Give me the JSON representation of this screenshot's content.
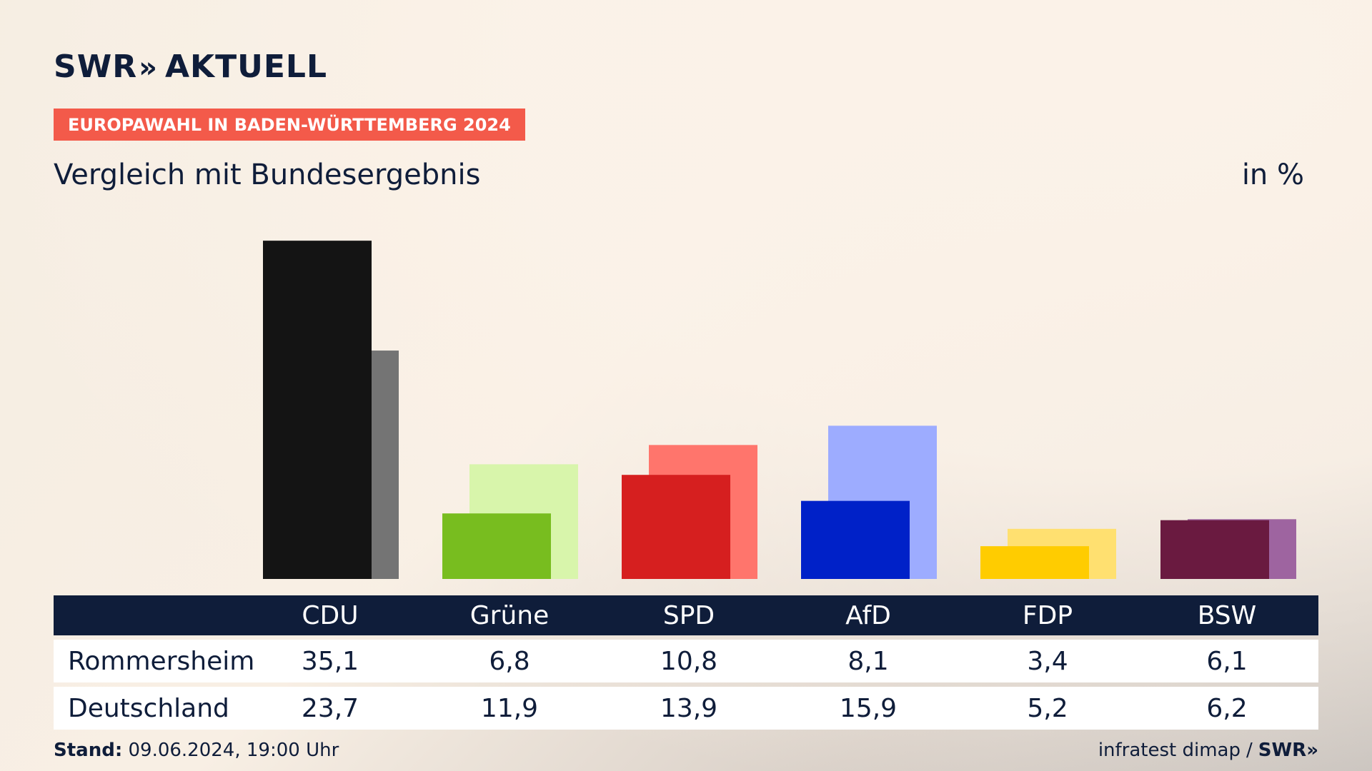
{
  "brand": {
    "logo_left": "SWR",
    "logo_chevron": "»",
    "logo_right": "AKTUELL"
  },
  "header": {
    "tag": "EUROPAWAHL IN BADEN-WÜRTTEMBERG 2024",
    "subtitle": "Vergleich mit Bundesergebnis",
    "unit": "in %"
  },
  "colors": {
    "navy": "#0f1d3a",
    "tag_red": "#f35a4a",
    "CDU": [
      "#141414",
      "#747474"
    ],
    "Grüne": [
      "#78bd1f",
      "#d8f5ab"
    ],
    "SPD": [
      "#d61f1f",
      "#ff756c"
    ],
    "AfD": [
      "#0021c8",
      "#9dacff"
    ],
    "FDP": [
      "#ffcc00",
      "#ffe070"
    ],
    "BSW": [
      "#6a1a40",
      "#9e64a0"
    ]
  },
  "chart_data": {
    "type": "bar",
    "categories": [
      "CDU",
      "Grüne",
      "SPD",
      "AfD",
      "FDP",
      "BSW"
    ],
    "series": [
      {
        "name": "Rommersheim",
        "values": [
          35.1,
          6.8,
          10.8,
          8.1,
          3.4,
          6.1
        ]
      },
      {
        "name": "Deutschland",
        "values": [
          23.7,
          11.9,
          13.9,
          15.9,
          5.2,
          6.2
        ]
      }
    ],
    "unit": "in %"
  },
  "table": {
    "headers": [
      "CDU",
      "Grüne",
      "SPD",
      "AfD",
      "FDP",
      "BSW"
    ],
    "rows": [
      {
        "label": "Rommersheim",
        "cells": [
          "35,1",
          "6,8",
          "10,8",
          "8,1",
          "3,4",
          "6,1"
        ]
      },
      {
        "label": "Deutschland",
        "cells": [
          "23,7",
          "11,9",
          "13,9",
          "15,9",
          "5,2",
          "6,2"
        ]
      }
    ]
  },
  "footer": {
    "stand_label": "Stand:",
    "stand_value": "09.06.2024, 19:00 Uhr",
    "source": "infratest dimap",
    "separator": "/",
    "source_logo": "SWR»"
  }
}
